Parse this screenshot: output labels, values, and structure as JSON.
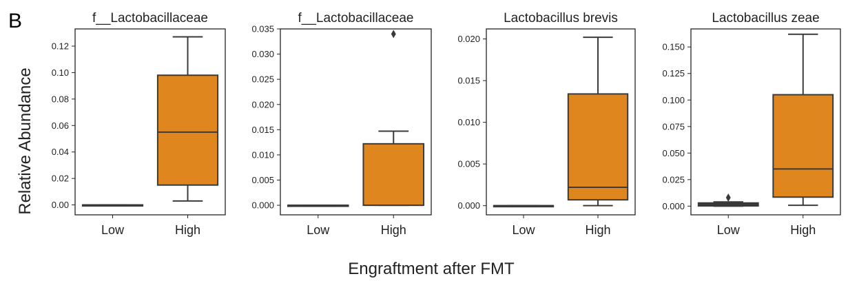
{
  "figure": {
    "panel_letter": "B",
    "ylabel": "Relative Abundance",
    "xlabel": "Engraftment after FMT"
  },
  "colors": {
    "low": "#2b2b4a",
    "high": "#e0861e",
    "edge": "#3a3a3a"
  },
  "chart_data": [
    {
      "type": "box",
      "title": "f__Lactobacillaceae",
      "categories": [
        "Low",
        "High"
      ],
      "ylim": [
        -0.0075,
        0.133
      ],
      "yticks": [
        0.0,
        0.02,
        0.04,
        0.06,
        0.08,
        0.1,
        0.12
      ],
      "ytick_labels": [
        "0.00",
        "0.02",
        "0.04",
        "0.06",
        "0.08",
        "0.10",
        "0.12"
      ],
      "boxes": [
        {
          "category": "Low",
          "whislo": 0.0,
          "q1": 0.0,
          "med": 0.0,
          "q3": 0.0,
          "whishi": 0.0,
          "fliers": []
        },
        {
          "category": "High",
          "whislo": 0.003,
          "q1": 0.015,
          "med": 0.055,
          "q3": 0.098,
          "whishi": 0.127,
          "fliers": []
        }
      ]
    },
    {
      "type": "box",
      "title": "f__Lactobacillaceae",
      "categories": [
        "Low",
        "High"
      ],
      "ylim": [
        -0.0019,
        0.035
      ],
      "yticks": [
        0.0,
        0.005,
        0.01,
        0.015,
        0.02,
        0.025,
        0.03,
        0.035
      ],
      "ytick_labels": [
        "0.000",
        "0.005",
        "0.010",
        "0.015",
        "0.020",
        "0.025",
        "0.030",
        "0.035"
      ],
      "boxes": [
        {
          "category": "Low",
          "whislo": 0.0,
          "q1": 0.0,
          "med": 0.0,
          "q3": 0.0,
          "whishi": 0.0,
          "fliers": []
        },
        {
          "category": "High",
          "whislo": 0.0,
          "q1": 0.0,
          "med": 0.0,
          "q3": 0.0122,
          "whishi": 0.0147,
          "fliers": [
            0.034
          ]
        }
      ]
    },
    {
      "type": "box",
      "title": "Lactobacillus brevis",
      "categories": [
        "Low",
        "High"
      ],
      "ylim": [
        -0.0011,
        0.0212
      ],
      "yticks": [
        0.0,
        0.005,
        0.01,
        0.015,
        0.02
      ],
      "ytick_labels": [
        "0.000",
        "0.005",
        "0.010",
        "0.015",
        "0.020"
      ],
      "boxes": [
        {
          "category": "Low",
          "whislo": 0.0,
          "q1": 0.0,
          "med": 0.0,
          "q3": 0.0,
          "whishi": 0.0,
          "fliers": []
        },
        {
          "category": "High",
          "whislo": 0.0,
          "q1": 0.0007,
          "med": 0.0022,
          "q3": 0.0134,
          "whishi": 0.0202,
          "fliers": []
        }
      ]
    },
    {
      "type": "box",
      "title": "Lactobacillus zeae",
      "categories": [
        "Low",
        "High"
      ],
      "ylim": [
        -0.0082,
        0.167
      ],
      "yticks": [
        0.0,
        0.025,
        0.05,
        0.075,
        0.1,
        0.125,
        0.15
      ],
      "ytick_labels": [
        "0.000",
        "0.025",
        "0.050",
        "0.075",
        "0.100",
        "0.125",
        "0.150"
      ],
      "boxes": [
        {
          "category": "Low",
          "whislo": 0.0,
          "q1": 0.0002,
          "med": 0.0015,
          "q3": 0.003,
          "whishi": 0.004,
          "fliers": [
            0.008
          ]
        },
        {
          "category": "High",
          "whislo": 0.0008,
          "q1": 0.0085,
          "med": 0.035,
          "q3": 0.105,
          "whishi": 0.162,
          "fliers": []
        }
      ]
    }
  ]
}
